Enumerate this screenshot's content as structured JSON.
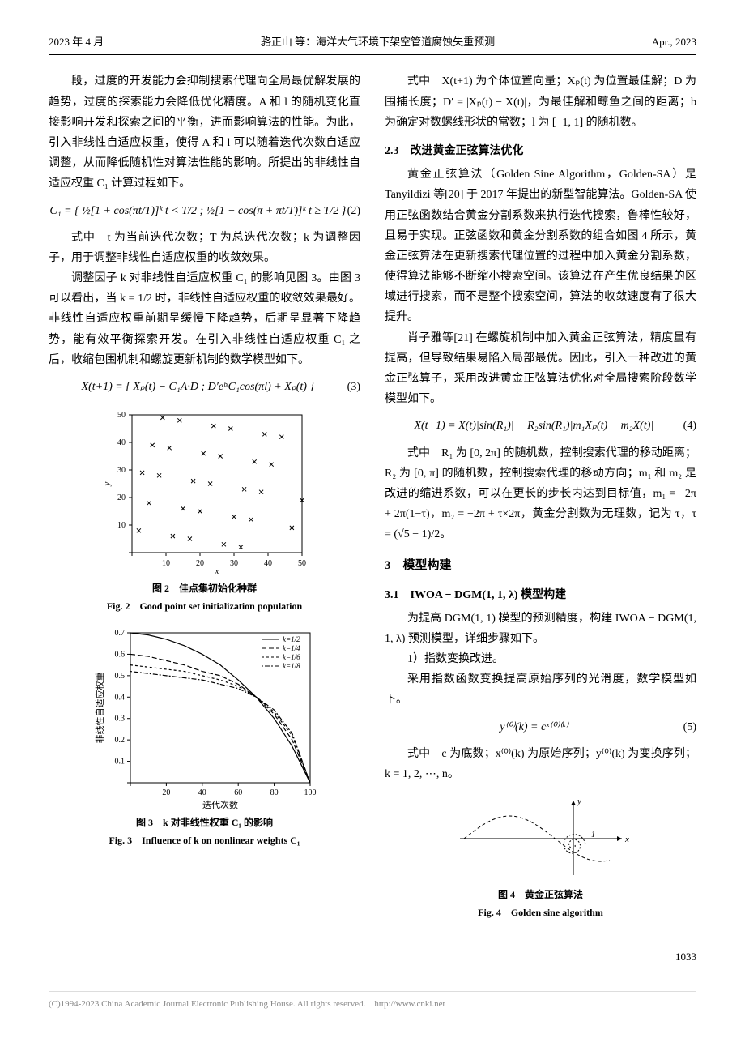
{
  "header": {
    "left": "2023 年 4 月",
    "center": "骆正山 等：海洋大气环境下架空管道腐蚀失重预测",
    "right": "Apr., 2023"
  },
  "left_col": {
    "p1": "段，过度的开发能力会抑制搜索代理向全局最优解发展的趋势，过度的探索能力会降低优化精度。A 和 l 的随机变化直接影响开发和探索之间的平衡，进而影响算法的性能。为此，引入非线性自适应权重，使得 A 和 l 可以随着迭代次数自适应调整，从而降低随机性对算法性能的影响。所提出的非线性自适应权重 C₁ 计算过程如下。",
    "eq2": "C₁ = { ½[1 + cos(πt/T)]ᵏ  t < T/2 ; ½[1 − cos(π + πt/T)]ᵏ  t ≥ T/2 }",
    "eq2_num": "(2)",
    "p2": "式中　t 为当前迭代次数；T 为总迭代次数；k 为调整因子，用于调整非线性自适应权重的收敛效果。",
    "p3": "调整因子 k 对非线性自适应权重 C₁ 的影响见图 3。由图 3 可以看出，当 k = 1/2 时，非线性自适应权重的收敛效果最好。非线性自适应权重前期呈缓慢下降趋势，后期呈显著下降趋势，能有效平衡探索开发。在引入非线性自适应权重 C₁ 之后，收缩包围机制和螺旋更新机制的数学模型如下。",
    "eq3": "X(t+1) = { Xₚ(t) − C₁A·D ; D′eᵇˡC₁cos(πl) + Xₚ(t) }",
    "eq3_num": "(3)"
  },
  "right_col": {
    "p1": "式中　X(t+1) 为个体位置向量；Xₚ(t) 为位置最佳解；D 为围捕长度；D′ = |Xₚ(t) − X(t)|，为最佳解和鲸鱼之间的距离；b 为确定对数螺线形状的常数；l 为 [−1, 1] 的随机数。",
    "sec23": "2.3　改进黄金正弦算法优化",
    "p2": "黄金正弦算法（Golden Sine Algorithm，Golden-SA）是 Tanyildizi 等[20] 于 2017 年提出的新型智能算法。Golden-SA 使用正弦函数结合黄金分割系数来执行迭代搜索，鲁棒性较好，且易于实现。正弦函数和黄金分割系数的组合如图 4 所示，黄金正弦算法在更新搜索代理位置的过程中加入黄金分割系数，使得算法能够不断缩小搜索空间。该算法在产生优良结果的区域进行搜索，而不是整个搜索空间，算法的收敛速度有了很大提升。",
    "p3": "肖子雅等[21] 在螺旋机制中加入黄金正弦算法，精度虽有提高，但导致结果易陷入局部最优。因此，引入一种改进的黄金正弦算子，采用改进黄金正弦算法优化对全局搜索阶段数学模型如下。",
    "eq4": "X(t+1) = X(t)|sin(R₁)| − R₂sin(R₁)|m₁Xₚ(t) − m₂X(t)|",
    "eq4_num": "(4)",
    "p4": "式中　R₁ 为 [0, 2π] 的随机数，控制搜索代理的移动距离；R₂ 为 [0, π] 的随机数，控制搜索代理的移动方向；m₁ 和 m₂ 是改进的缩进系数，可以在更长的步长内达到目标值，m₁ = −2π + 2π(1−τ)，m₂ = −2π + τ×2π，黄金分割数为无理数，记为 τ，τ = (√5 − 1)/2。",
    "sec3": "3　模型构建",
    "sec31": "3.1　IWOA − DGM(1, 1, λ) 模型构建",
    "p5": "为提高 DGM(1, 1) 模型的预测精度，构建 IWOA − DGM(1, 1, λ) 预测模型，详细步骤如下。",
    "p6": "1）指数变换改进。",
    "p7": "采用指数函数变换提高原始序列的光滑度，数学模型如下。",
    "eq5": "y⁽⁰⁾(k) = cˣ⁽⁰⁾⁽ᵏ⁾",
    "eq5_num": "(5)",
    "p8": "式中　c 为底数；x⁽⁰⁾(k) 为原始序列；y⁽⁰⁾(k) 为变换序列；k = 1, 2, ⋯, n。"
  },
  "fig2": {
    "caption_cn": "图 2　佳点集初始化种群",
    "caption_en": "Fig. 2　Good point set initialization population",
    "xlabel": "x",
    "ylabel": "y",
    "xlim": [
      0,
      50
    ],
    "ylim": [
      0,
      50
    ],
    "ticks": [
      0,
      10,
      20,
      30,
      40,
      50
    ],
    "points": [
      [
        2,
        8
      ],
      [
        5,
        18
      ],
      [
        8,
        28
      ],
      [
        11,
        38
      ],
      [
        14,
        48
      ],
      [
        17,
        5
      ],
      [
        20,
        15
      ],
      [
        23,
        25
      ],
      [
        26,
        35
      ],
      [
        29,
        45
      ],
      [
        32,
        2
      ],
      [
        35,
        12
      ],
      [
        38,
        22
      ],
      [
        41,
        32
      ],
      [
        44,
        42
      ],
      [
        47,
        9
      ],
      [
        50,
        19
      ],
      [
        3,
        29
      ],
      [
        6,
        39
      ],
      [
        9,
        49
      ],
      [
        12,
        6
      ],
      [
        15,
        16
      ],
      [
        18,
        26
      ],
      [
        21,
        36
      ],
      [
        24,
        46
      ],
      [
        27,
        3
      ],
      [
        30,
        13
      ],
      [
        33,
        23
      ],
      [
        36,
        33
      ],
      [
        39,
        43
      ]
    ],
    "point_color": "#000",
    "bg": "#fff",
    "axis_color": "#000"
  },
  "fig3": {
    "caption_cn": "图 3　k 对非线性权重 C₁ 的影响",
    "caption_en": "Fig. 3　Influence of k on nonlinear weights C₁",
    "xlabel": "迭代次数",
    "ylabel": "非线性自适应权重",
    "xlim": [
      0,
      100
    ],
    "ylim": [
      0,
      0.7
    ],
    "xticks": [
      0,
      20,
      40,
      60,
      80,
      100
    ],
    "yticks": [
      0,
      0.1,
      0.2,
      0.3,
      0.4,
      0.5,
      0.6,
      0.7
    ],
    "series": [
      {
        "label": "k=1/2",
        "dash": "none",
        "data": [
          [
            0,
            0.7
          ],
          [
            10,
            0.69
          ],
          [
            20,
            0.67
          ],
          [
            30,
            0.64
          ],
          [
            40,
            0.6
          ],
          [
            50,
            0.55
          ],
          [
            60,
            0.48
          ],
          [
            70,
            0.4
          ],
          [
            80,
            0.3
          ],
          [
            90,
            0.17
          ],
          [
            100,
            0
          ]
        ]
      },
      {
        "label": "k=1/4",
        "dash": "6,3",
        "data": [
          [
            0,
            0.6
          ],
          [
            10,
            0.59
          ],
          [
            20,
            0.57
          ],
          [
            30,
            0.55
          ],
          [
            40,
            0.52
          ],
          [
            50,
            0.5
          ],
          [
            60,
            0.46
          ],
          [
            70,
            0.4
          ],
          [
            80,
            0.32
          ],
          [
            90,
            0.2
          ],
          [
            100,
            0
          ]
        ]
      },
      {
        "label": "k=1/6",
        "dash": "3,3",
        "data": [
          [
            0,
            0.55
          ],
          [
            10,
            0.54
          ],
          [
            20,
            0.53
          ],
          [
            30,
            0.52
          ],
          [
            40,
            0.5
          ],
          [
            50,
            0.48
          ],
          [
            60,
            0.45
          ],
          [
            70,
            0.4
          ],
          [
            80,
            0.33
          ],
          [
            90,
            0.22
          ],
          [
            100,
            0
          ]
        ]
      },
      {
        "label": "k=1/8",
        "dash": "2,2,6,2",
        "data": [
          [
            0,
            0.52
          ],
          [
            10,
            0.51
          ],
          [
            20,
            0.5
          ],
          [
            30,
            0.49
          ],
          [
            40,
            0.48
          ],
          [
            50,
            0.46
          ],
          [
            60,
            0.44
          ],
          [
            70,
            0.4
          ],
          [
            80,
            0.34
          ],
          [
            90,
            0.23
          ],
          [
            100,
            0
          ]
        ]
      }
    ],
    "line_color": "#000",
    "bg": "#fff",
    "axis_color": "#000"
  },
  "fig4": {
    "caption_cn": "图 4　黄金正弦算法",
    "caption_en": "Fig. 4　Golden sine algorithm",
    "axis_color": "#000",
    "sine_color": "#000",
    "spiral_color": "#000"
  },
  "page_num": "1033",
  "footer": "(C)1994-2023 China Academic Journal Electronic Publishing House. All rights reserved.　http://www.cnki.net"
}
